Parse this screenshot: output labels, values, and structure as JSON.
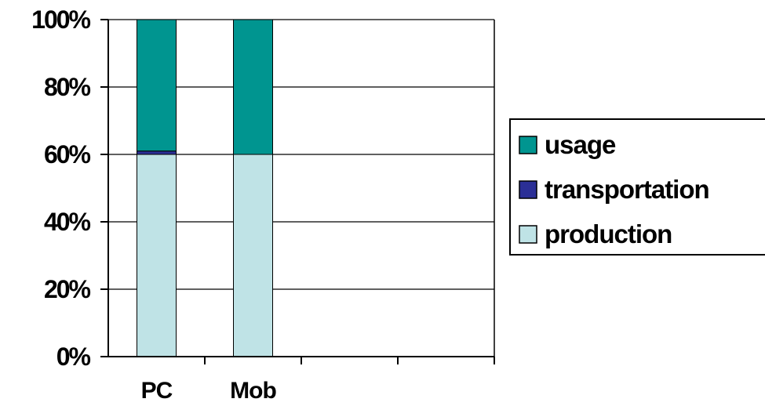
{
  "chart_data": {
    "type": "bar",
    "stacked": true,
    "percent_stacked": true,
    "categories": [
      "PC",
      "Mob"
    ],
    "series": [
      {
        "name": "production",
        "color": "#bfe3e6",
        "values": [
          60,
          60
        ]
      },
      {
        "name": "transportation",
        "color": "#2b2f96",
        "values": [
          1,
          0
        ]
      },
      {
        "name": "usage",
        "color": "#009590",
        "values": [
          39,
          40
        ]
      }
    ],
    "y_ticks": [
      "0%",
      "20%",
      "40%",
      "60%",
      "80%",
      "100%"
    ],
    "ylim": [
      0,
      100
    ],
    "grid": true,
    "legend_position": "right",
    "legend_order": [
      "usage",
      "transportation",
      "production"
    ],
    "x_slots": 4
  }
}
